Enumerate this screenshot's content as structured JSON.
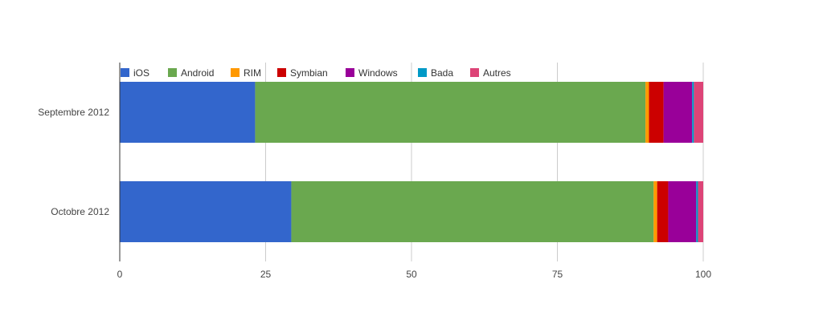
{
  "chart_data": {
    "type": "bar",
    "orientation": "horizontal",
    "stacked": true,
    "categories": [
      "Septembre 2012",
      "Octobre 2012"
    ],
    "series": [
      {
        "name": "iOS",
        "color": "#3366cc",
        "values": [
          23.2,
          29.4
        ]
      },
      {
        "name": "Android",
        "color": "#6aa84f",
        "values": [
          66.9,
          62.1
        ]
      },
      {
        "name": "RIM",
        "color": "#ff9900",
        "values": [
          0.6,
          0.6
        ]
      },
      {
        "name": "Symbian",
        "color": "#cc0000",
        "values": [
          2.5,
          1.9
        ]
      },
      {
        "name": "Windows",
        "color": "#990099",
        "values": [
          4.9,
          4.8
        ]
      },
      {
        "name": "Bada",
        "color": "#0099c6",
        "values": [
          0.3,
          0.3
        ]
      },
      {
        "name": "Autres",
        "color": "#dd4477",
        "values": [
          1.6,
          0.9
        ]
      }
    ],
    "xlim": [
      0,
      100
    ],
    "xticks": [
      "0",
      "25",
      "50",
      "75",
      "100"
    ],
    "xtick_values": [
      0,
      25,
      50,
      75,
      100
    ],
    "grid": true,
    "legend_position": "top-left",
    "title": "",
    "xlabel": "",
    "ylabel": ""
  }
}
